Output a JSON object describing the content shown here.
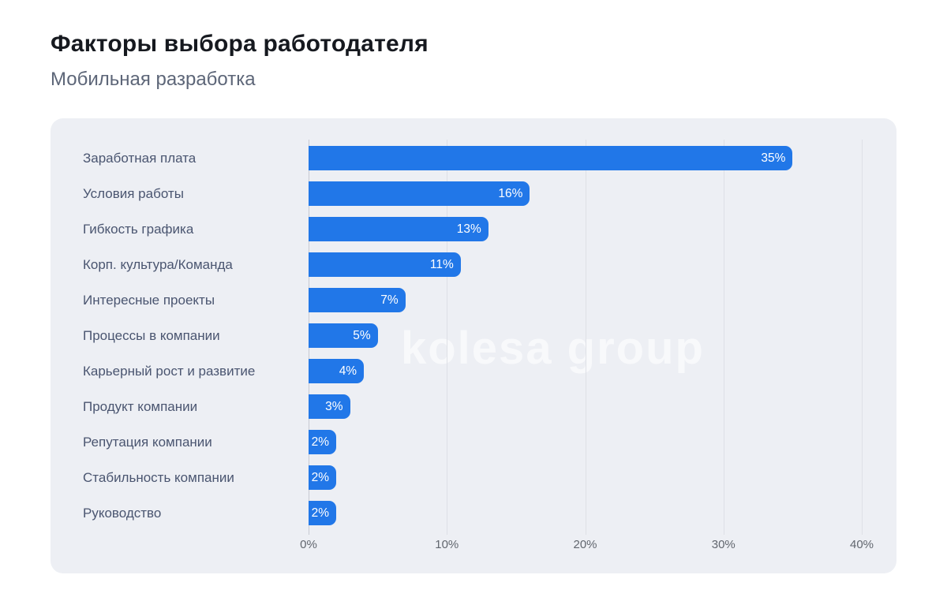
{
  "header": {
    "title": "Факторы выбора работодателя",
    "subtitle": "Мобильная разработка"
  },
  "watermark": {
    "text": "kolesa group"
  },
  "chart_data": {
    "type": "bar",
    "orientation": "horizontal",
    "title": "Факторы выбора работодателя",
    "subtitle": "Мобильная разработка",
    "categories": [
      "Заработная плата",
      "Условия работы",
      "Гибкость графика",
      "Корп. культура/Команда",
      "Интересные проекты",
      "Процессы в компании",
      "Карьерный рост и развитие",
      "Продукт компании",
      "Репутация компании",
      "Стабильность компании",
      "Руководство"
    ],
    "values": [
      35,
      16,
      13,
      11,
      7,
      5,
      4,
      3,
      2,
      2,
      2
    ],
    "value_labels": [
      "35%",
      "16%",
      "13%",
      "11%",
      "7%",
      "5%",
      "4%",
      "3%",
      "2%",
      "2%",
      "2%"
    ],
    "xlim": [
      0,
      40
    ],
    "xticks": [
      0,
      10,
      20,
      30,
      40
    ],
    "xtick_labels": [
      "0%",
      "10%",
      "20%",
      "30%",
      "40%"
    ],
    "grid": "vertical",
    "legend": "none",
    "bar_color": "#2177e8",
    "value_label_color": "#ffffff",
    "category_label_color": "#4a5570",
    "card_background": "#edeff4"
  }
}
